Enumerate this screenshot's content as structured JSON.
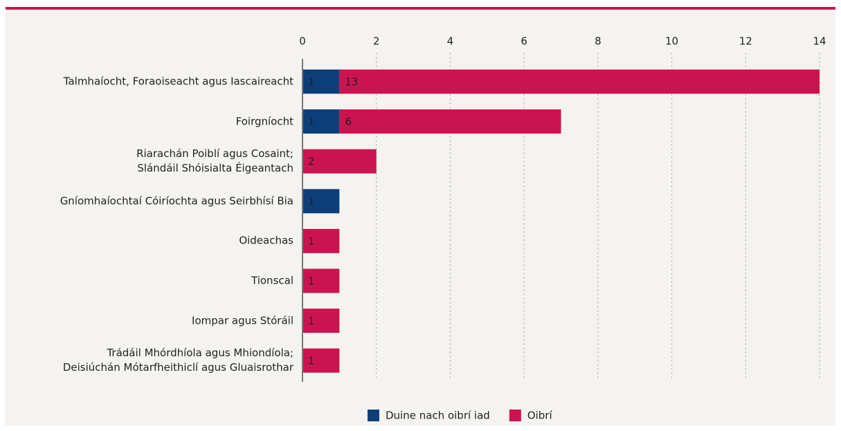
{
  "chart_data": {
    "type": "bar",
    "orientation": "horizontal",
    "stacked": true,
    "categories": [
      "Talmhaíocht, Foraoiseacht agus Iascaireacht",
      "Foirgníocht",
      "Riarachán Poiblí agus Cosaint;\nSlándáil Shóisialta Éigeantach",
      "Gníomhaíochtaí Cóiríochta agus Seirbhísí Bia",
      "Oideachas",
      "Tionscal",
      "Iompar agus Stóráil",
      "Trádáil Mhórdhíola agus Mhiondíola;\nDeisiúchán Mótarfheithiclí agus Gluaisrothar"
    ],
    "series": [
      {
        "name": "Duine nach oibrí iad",
        "color": "#0c3f7a",
        "values": [
          1,
          1,
          null,
          1,
          null,
          null,
          null,
          null
        ]
      },
      {
        "name": "Oibrí",
        "color": "#cc1351",
        "values": [
          13,
          6,
          2,
          null,
          1,
          1,
          1,
          1
        ]
      }
    ],
    "xlim": [
      0,
      14
    ],
    "xticks": [
      0,
      2,
      4,
      6,
      8,
      10,
      12,
      14
    ],
    "grid": true,
    "legend": "bottom"
  }
}
